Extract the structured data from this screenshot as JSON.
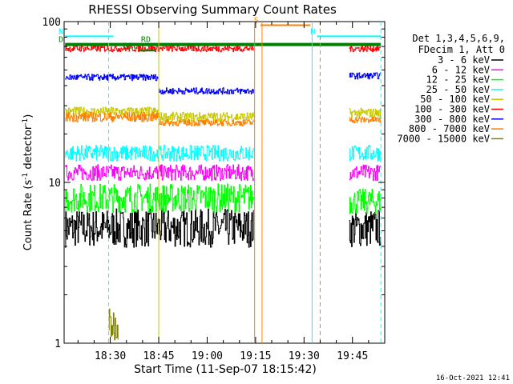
{
  "chart_data": {
    "type": "line",
    "title": "RHESSI Observing Summary Count Rates",
    "xlabel": "Start Time (11-Sep-07 18:15:42)",
    "ylabel_main": "Count Rate (s",
    "ylabel_sup1": "-1",
    "ylabel_mid": " detector",
    "ylabel_sup2": "-1",
    "ylabel_end": ")",
    "yscale": "log",
    "ylim": [
      1,
      100
    ],
    "x_start_min": 1095.7,
    "x_end_min": 1195,
    "x_ticks": [
      {
        "min": 1110,
        "label": "18:30"
      },
      {
        "min": 1125,
        "label": "18:45"
      },
      {
        "min": 1140,
        "label": "19:00"
      },
      {
        "min": 1155,
        "label": "19:15"
      },
      {
        "min": 1170,
        "label": "19:30"
      },
      {
        "min": 1185,
        "label": "19:45"
      }
    ],
    "y_ticks": [
      {
        "value": 1,
        "label": "1"
      },
      {
        "value": 10,
        "label": "10"
      },
      {
        "value": 100,
        "label": "100"
      }
    ],
    "legend": {
      "position": "right",
      "header": [
        "Det 1,3,4,5,6,9,",
        "FDecim 1, Att 0"
      ],
      "entries": [
        {
          "label": "3 - 6 keV",
          "color": "#000000"
        },
        {
          "label": "6 - 12 keV",
          "color": "#ff00ff"
        },
        {
          "label": "12 - 25 keV",
          "color": "#00ff00"
        },
        {
          "label": "25 - 50 keV",
          "color": "#00ffff"
        },
        {
          "label": "50 - 100 keV",
          "color": "#c8c800"
        },
        {
          "label": "100 - 300 keV",
          "color": "#ff0000"
        },
        {
          "label": "300 - 800 keV",
          "color": "#0000ff"
        },
        {
          "label": "800 - 7000 keV",
          "color": "#ff8000"
        },
        {
          "label": "7000 - 15000 keV",
          "color": "#808000"
        }
      ]
    },
    "series": [
      {
        "name": "3 - 6 keV",
        "color": "#000000",
        "segments": [
          {
            "start": 1096,
            "end": 1154.5,
            "level": 5.2,
            "spread": 0.12
          },
          {
            "start": 1184,
            "end": 1193.8,
            "level": 5.2,
            "spread": 0.12
          }
        ]
      },
      {
        "name": "6 - 12 keV",
        "color": "#ff00ff",
        "segments": [
          {
            "start": 1096,
            "end": 1154.5,
            "level": 11.5,
            "spread": 0.05
          },
          {
            "start": 1184,
            "end": 1193.8,
            "level": 11.5,
            "spread": 0.05
          }
        ]
      },
      {
        "name": "12 - 25 keV",
        "color": "#00ff00",
        "segments": [
          {
            "start": 1096,
            "end": 1154.5,
            "level": 8.0,
            "spread": 0.09
          },
          {
            "start": 1184,
            "end": 1193.8,
            "level": 7.6,
            "spread": 0.08
          }
        ]
      },
      {
        "name": "25 - 50 keV",
        "color": "#00ffff",
        "segments": [
          {
            "start": 1096,
            "end": 1154.5,
            "level": 15.2,
            "spread": 0.05
          },
          {
            "start": 1184,
            "end": 1193.8,
            "level": 15.2,
            "spread": 0.05
          }
        ]
      },
      {
        "name": "50 - 100 keV",
        "color": "#c8c800",
        "segments": [
          {
            "start": 1096,
            "end": 1125,
            "level": 27.5,
            "spread": 0.03
          },
          {
            "start": 1125,
            "end": 1154.5,
            "level": 25.5,
            "spread": 0.03
          },
          {
            "start": 1184,
            "end": 1193.8,
            "level": 27,
            "spread": 0.03
          }
        ]
      },
      {
        "name": "100 - 300 keV",
        "color": "#ff0000",
        "segments": [
          {
            "start": 1096,
            "end": 1154.5,
            "level": 68,
            "spread": 0.02
          },
          {
            "start": 1184,
            "end": 1193.8,
            "level": 68,
            "spread": 0.02
          }
        ]
      },
      {
        "name": "300 - 800 keV",
        "color": "#0000ff",
        "segments": [
          {
            "start": 1096,
            "end": 1125,
            "level": 45,
            "spread": 0.02
          },
          {
            "start": 1125,
            "end": 1154.5,
            "level": 37,
            "spread": 0.02
          },
          {
            "start": 1184,
            "end": 1193.8,
            "level": 46,
            "spread": 0.02
          }
        ]
      },
      {
        "name": "800 - 7000 keV",
        "color": "#ff8000",
        "segments": [
          {
            "start": 1096,
            "end": 1125,
            "level": 25.5,
            "spread": 0.03
          },
          {
            "start": 1125,
            "end": 1154.5,
            "level": 23.5,
            "spread": 0.02
          },
          {
            "start": 1184,
            "end": 1193.8,
            "level": 24.5,
            "spread": 0.02
          }
        ]
      },
      {
        "name": "7000 - 15000 keV",
        "color": "#808000",
        "segments": [
          {
            "start": 1109.5,
            "end": 1112.5,
            "level": 1.3,
            "spread": 0.1
          }
        ]
      }
    ],
    "state_flags": [
      {
        "label": "S",
        "color": "#ff8000",
        "start": 1156.5,
        "end": 1172,
        "value": 95
      },
      {
        "label": "N",
        "color": "#00ffff",
        "start": 1096,
        "end": 1111,
        "value": 81
      },
      {
        "label": "N",
        "color": "#00ffff",
        "start": 1174,
        "end": 1193.8,
        "value": 81
      },
      {
        "label": "D",
        "color": "#008000",
        "start": 1096,
        "end": 1193.8,
        "value": 72
      },
      {
        "label": "RD",
        "color": "#008000",
        "start": 1123,
        "end": 1130,
        "value": 72
      },
      {
        "label": "REL",
        "color": "#008000",
        "start": 1119,
        "end": 1124,
        "value": 66
      }
    ],
    "vertical_markers": [
      {
        "min": 1109.5,
        "color": "#00ffff",
        "style": "dashed"
      },
      {
        "min": 1154.7,
        "color": "#ff8000",
        "style": "solid"
      },
      {
        "min": 1157,
        "color": "#ff8000",
        "style": "solid"
      },
      {
        "min": 1172.5,
        "color": "#00ffff",
        "style": "solid"
      },
      {
        "min": 1175,
        "color": "#ff8000",
        "style": "dashed"
      },
      {
        "min": 1193.8,
        "color": "#00ffff",
        "style": "dashed"
      },
      {
        "min": 1125,
        "color": "#c8c800",
        "style": "solid"
      }
    ],
    "footer_stamp": "16-Oct-2021 12:41"
  }
}
